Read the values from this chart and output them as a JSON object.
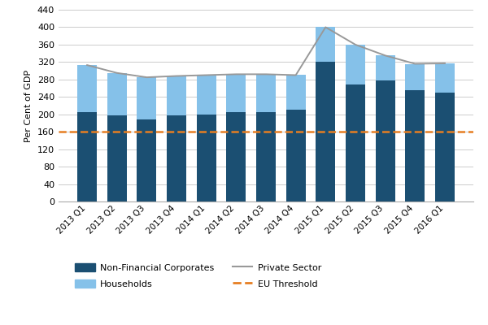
{
  "categories": [
    "2013 Q1",
    "2013 Q2",
    "2013 Q3",
    "2013 Q4",
    "2014 Q1",
    "2014 Q2",
    "2014 Q3",
    "2014 Q4",
    "2015 Q1",
    "2015 Q2",
    "2015 Q3",
    "2015 Q4",
    "2016 Q1"
  ],
  "non_financial": [
    205,
    198,
    188,
    198,
    200,
    205,
    205,
    210,
    320,
    268,
    278,
    256,
    250
  ],
  "households": [
    108,
    97,
    97,
    90,
    90,
    87,
    87,
    80,
    80,
    92,
    57,
    60,
    67
  ],
  "private_sector": [
    313,
    295,
    285,
    288,
    290,
    292,
    292,
    290,
    400,
    360,
    335,
    316,
    317
  ],
  "eu_threshold": 160,
  "nfc_color": "#1b4f72",
  "households_color": "#85c1e9",
  "private_sector_color": "#999999",
  "eu_threshold_color": "#e67e22",
  "ylabel": "Per Cent of GDP",
  "ylim": [
    0,
    440
  ],
  "yticks": [
    0,
    40,
    80,
    120,
    160,
    200,
    240,
    280,
    320,
    360,
    400,
    440
  ],
  "legend_nfc": "Non-Financial Corporates",
  "legend_hh": "Households",
  "legend_ps": "Private Sector",
  "legend_eu": "EU Threshold",
  "background_color": "#ffffff",
  "plot_bg_color": "#ffffff",
  "grid_color": "#cccccc"
}
